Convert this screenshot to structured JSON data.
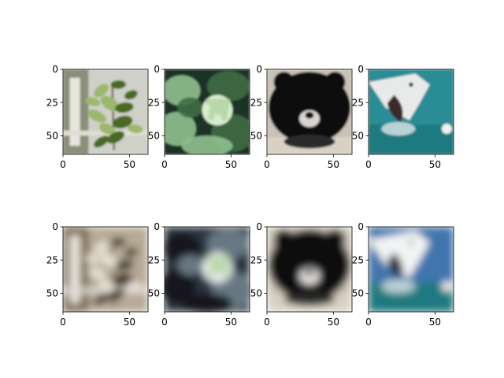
{
  "figure": {
    "grid": {
      "rows": 2,
      "cols": 4
    },
    "image_extent": [
      0,
      64
    ],
    "x_ticks": [
      "0",
      "50"
    ],
    "y_ticks": [
      "0",
      "25",
      "50"
    ],
    "panels": [
      {
        "row": 0,
        "col": 0,
        "subject": "potted plant",
        "icon": "plant-photo",
        "colors": {
          "bg": "#cfd0c8",
          "mid": "#8a8f7a",
          "main": "#4a6a24",
          "accent": "#9cb86a"
        }
      },
      {
        "row": 0,
        "col": 1,
        "subject": "broccoli plant",
        "icon": "broccoli-photo",
        "colors": {
          "bg": "#1f3325",
          "mid": "#3e6b45",
          "main": "#8fc08f",
          "accent": "#d8ecd0"
        }
      },
      {
        "row": 0,
        "col": 2,
        "subject": "sloth bear",
        "icon": "bear-photo",
        "colors": {
          "bg": "#c9c2b6",
          "mid": "#2a2a2c",
          "main": "#0e0e10",
          "accent": "#d9d6d2"
        }
      },
      {
        "row": 0,
        "col": 3,
        "subject": "shark",
        "icon": "shark-photo",
        "colors": {
          "bg": "#2a8c94",
          "mid": "#5ab0b5",
          "main": "#e8eaea",
          "accent": "#3a2a2a"
        }
      },
      {
        "row": 1,
        "col": 0,
        "subject": "blurred reconstruction of plant",
        "icon": "blurred-plant-photo",
        "colors": {
          "bg": "#b7aa96",
          "mid": "#7b6a52",
          "main": "#3a2e22",
          "accent": "#e6e0d6"
        }
      },
      {
        "row": 1,
        "col": 1,
        "subject": "blurred reconstruction of broccoli",
        "icon": "blurred-broccoli-photo",
        "colors": {
          "bg": "#2b3540",
          "mid": "#6f7f8a",
          "main": "#0f1418",
          "accent": "#e9eef2"
        }
      },
      {
        "row": 1,
        "col": 2,
        "subject": "blurred reconstruction of bear",
        "icon": "blurred-bear-photo",
        "colors": {
          "bg": "#cfc6ba",
          "mid": "#3a3838",
          "main": "#0c0c0e",
          "accent": "#e6e4e0"
        }
      },
      {
        "row": 1,
        "col": 3,
        "subject": "blurred reconstruction of shark",
        "icon": "blurred-shark-photo",
        "colors": {
          "bg": "#3f74ad",
          "mid": "#7ea6c8",
          "main": "#f2f4f4",
          "accent": "#1e2a38"
        }
      }
    ]
  }
}
